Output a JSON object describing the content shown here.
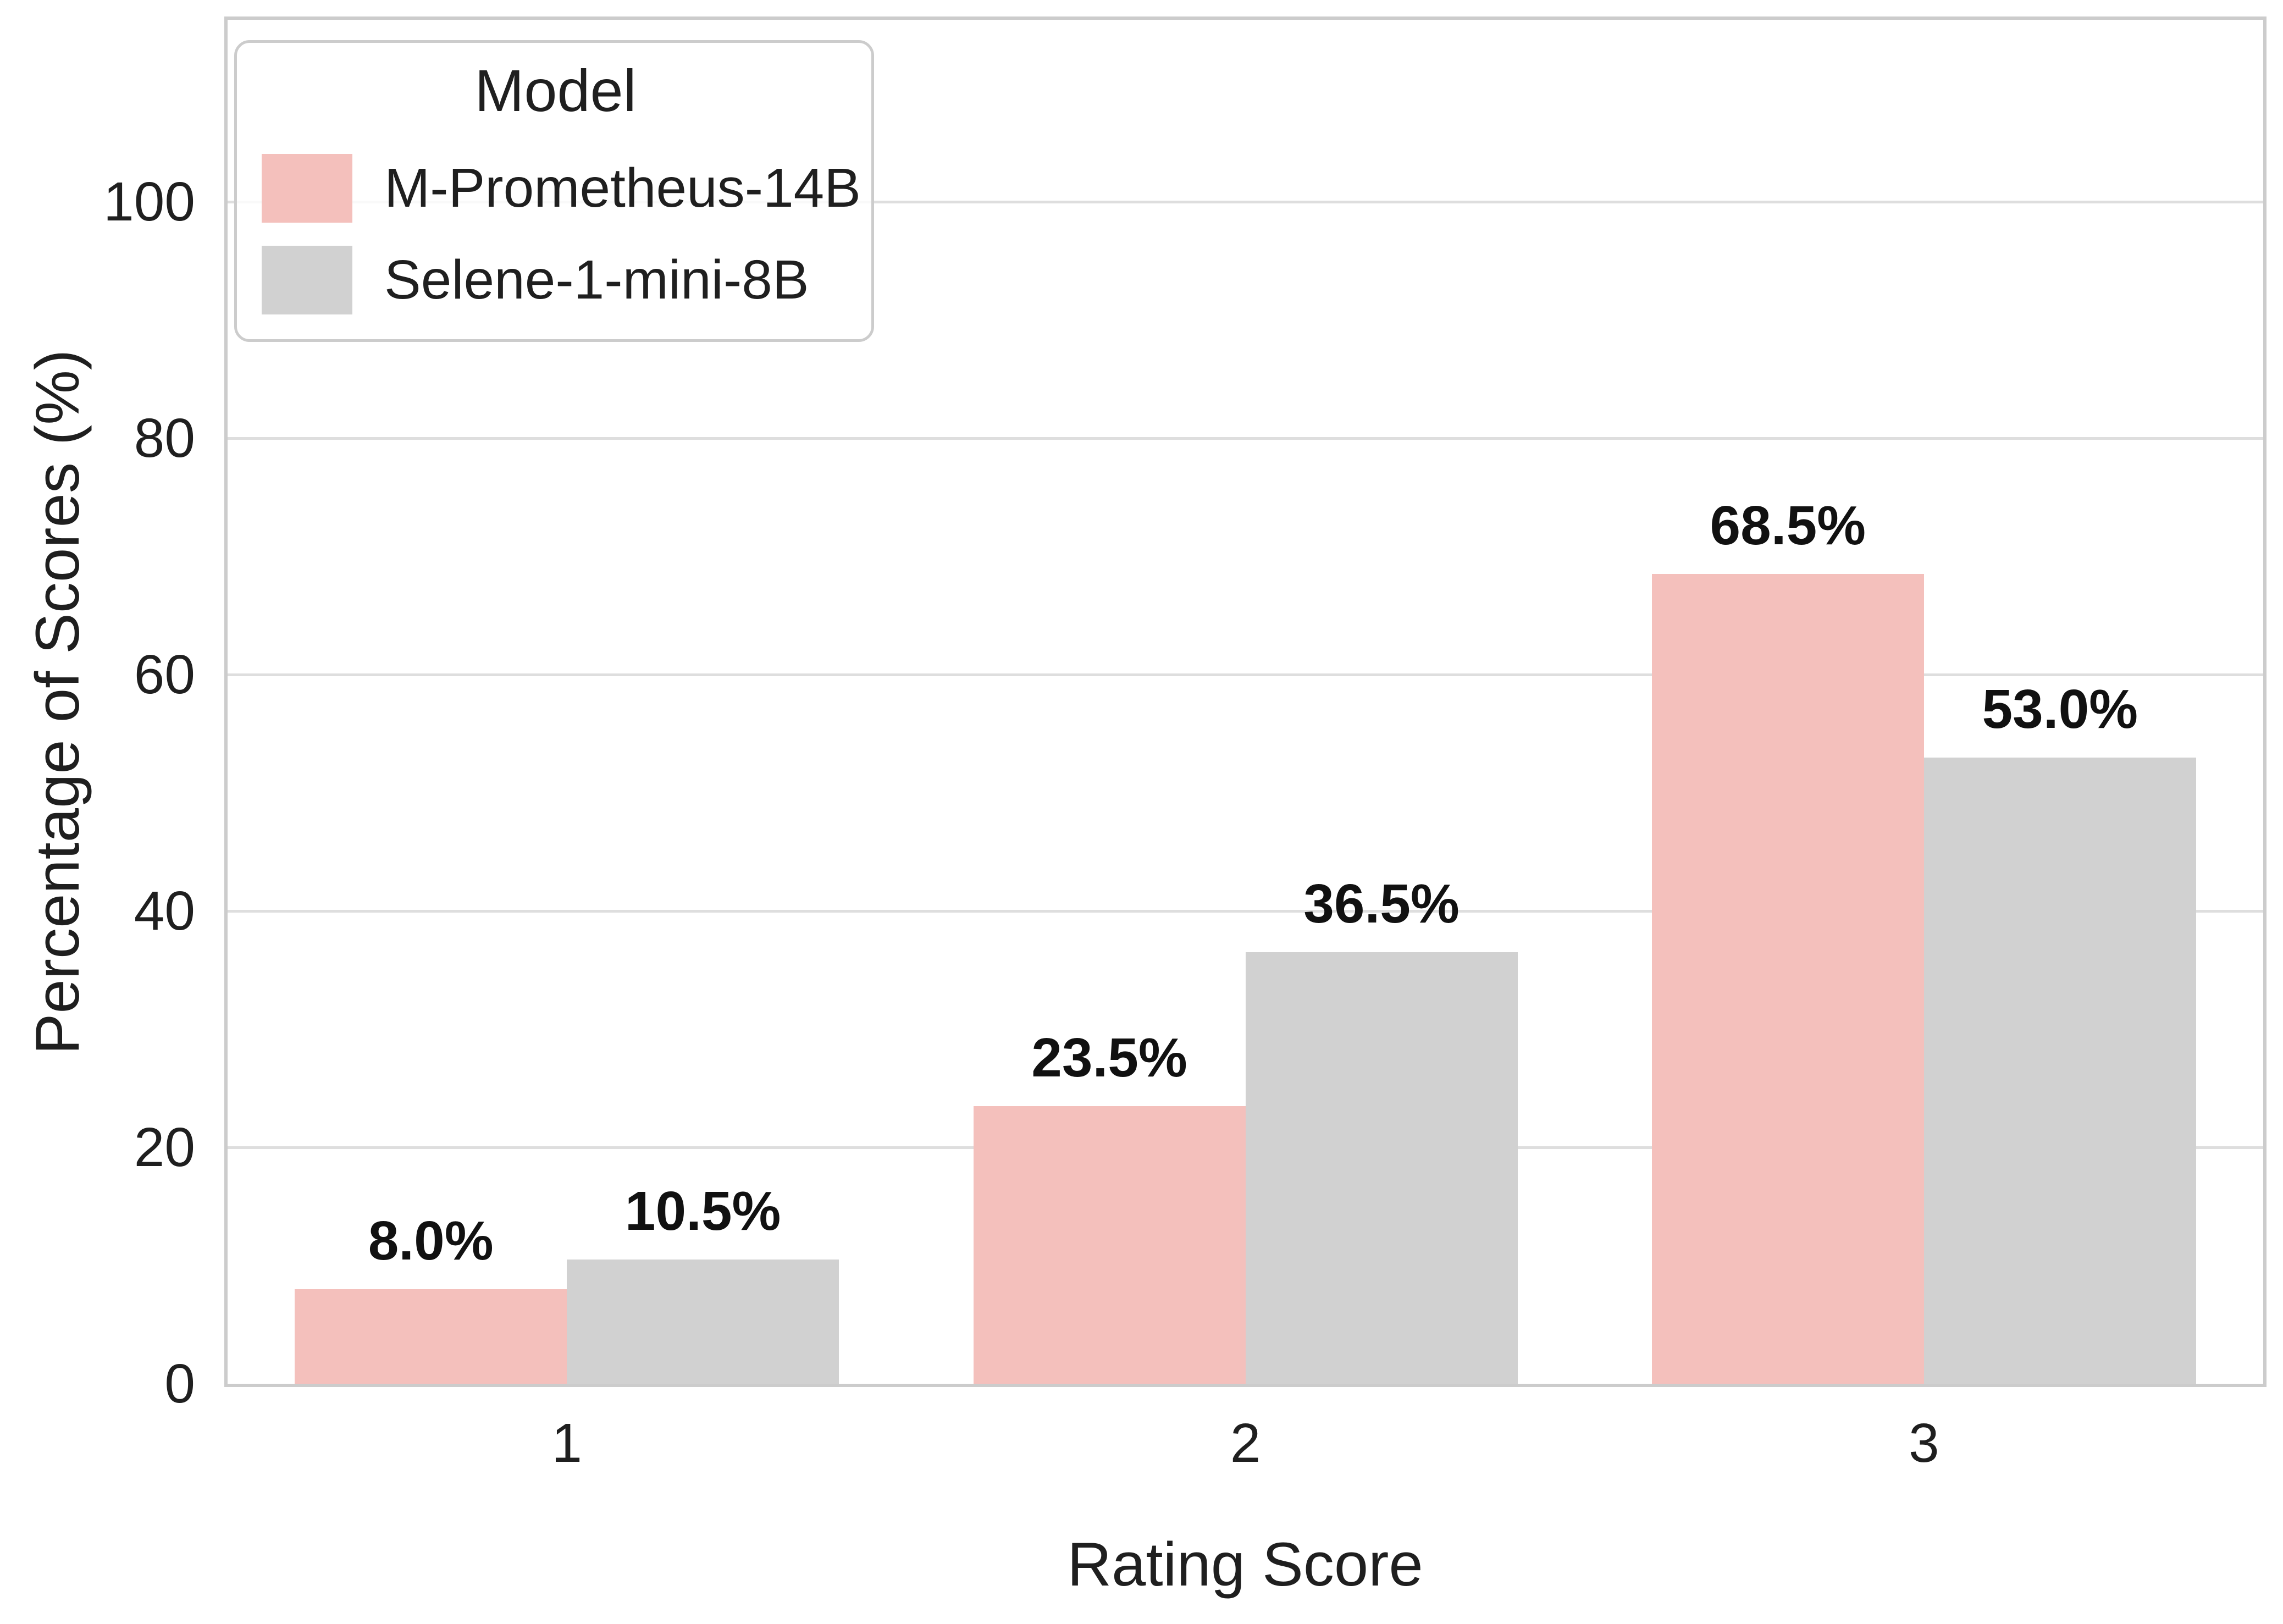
{
  "chart_data": {
    "type": "bar",
    "title": "",
    "xlabel": "Rating Score",
    "ylabel": "Percentage of Scores (%)",
    "categories": [
      "1",
      "2",
      "3"
    ],
    "series": [
      {
        "name": "M-Prometheus-14B",
        "color": "#f4c0bc",
        "values": [
          8.0,
          23.5,
          68.5
        ],
        "labels": [
          "8.0%",
          "23.5%",
          "68.5%"
        ]
      },
      {
        "name": "Selene-1-mini-8B",
        "color": "#d1d1d1",
        "values": [
          10.5,
          36.5,
          53.0
        ],
        "labels": [
          "10.5%",
          "36.5%",
          "53.0%"
        ]
      }
    ],
    "yticks": [
      0,
      20,
      40,
      60,
      80,
      100
    ],
    "ylim": [
      0,
      115.4
    ],
    "grid": "horizontal",
    "legend": {
      "title": "Model",
      "position": "upper-left"
    }
  },
  "styles": {
    "background": "#ffffff",
    "grid_color": "#dedede",
    "spine_color": "#cccccc",
    "tick_text_color": "#1f1f1f",
    "bar_label_color": "#111111"
  }
}
